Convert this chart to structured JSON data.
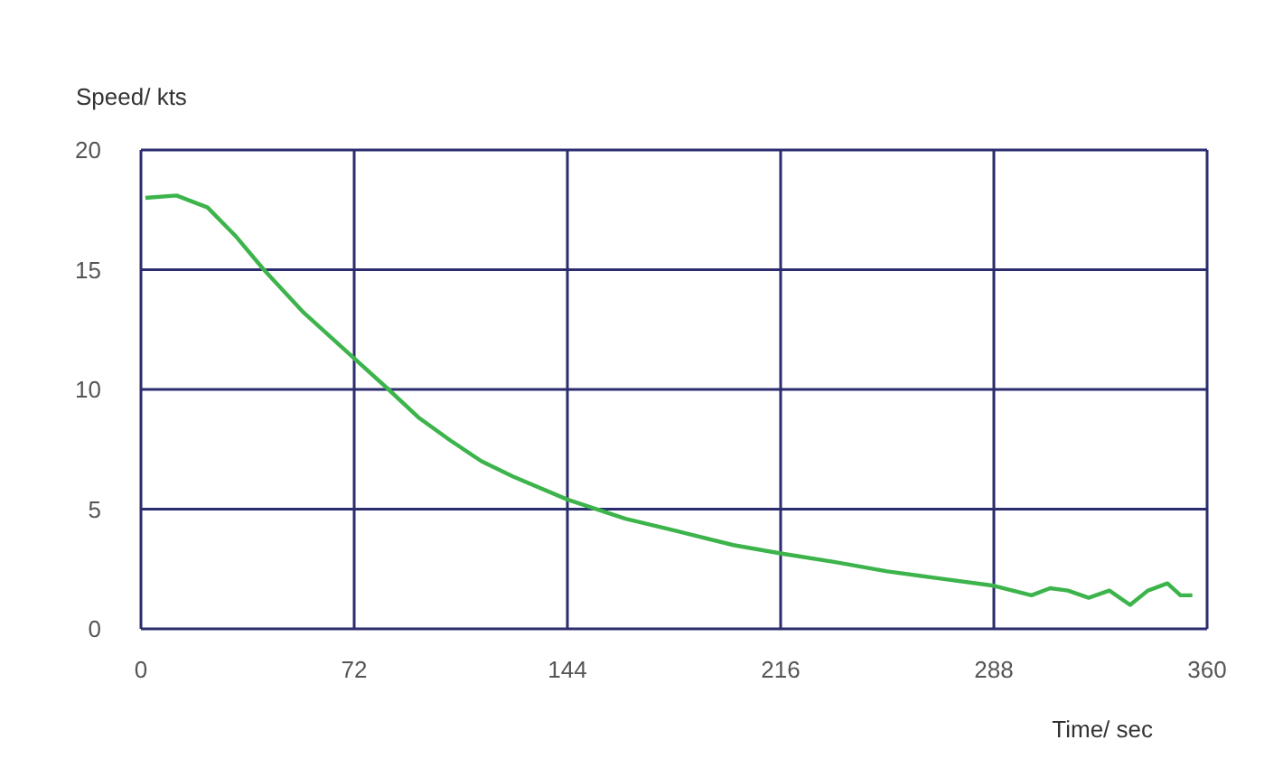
{
  "chart_data": {
    "type": "line",
    "ylabel": "Speed/ kts",
    "xlabel": "Time/ sec",
    "xlim": [
      0,
      360
    ],
    "xticks": [
      0,
      72,
      144,
      216,
      288,
      360
    ],
    "ylim": [
      0,
      20
    ],
    "yticks": [
      0,
      5,
      10,
      15,
      20
    ],
    "grid": true,
    "marker": "none",
    "line_style": "solid",
    "series": [
      {
        "color": "#3cb44b",
        "x": [
          1.5,
          12,
          22.5,
          32,
          41.5,
          55,
          72,
          83.6,
          94,
          104.7,
          115,
          125.7,
          144,
          163.6,
          180.5,
          200,
          216,
          234,
          252,
          270,
          288,
          300.7,
          307,
          313,
          320,
          327,
          334,
          340,
          346.6,
          351,
          355
        ],
        "values": [
          18.0,
          18.1,
          17.6,
          16.4,
          15.0,
          13.2,
          11.3,
          10.0,
          8.8,
          7.85,
          7.0,
          6.36,
          5.4,
          4.6,
          4.1,
          3.5,
          3.15,
          2.8,
          2.4,
          2.1,
          1.8,
          1.4,
          1.7,
          1.6,
          1.3,
          1.6,
          1.0,
          1.6,
          1.9,
          1.4,
          1.4
        ]
      }
    ]
  }
}
